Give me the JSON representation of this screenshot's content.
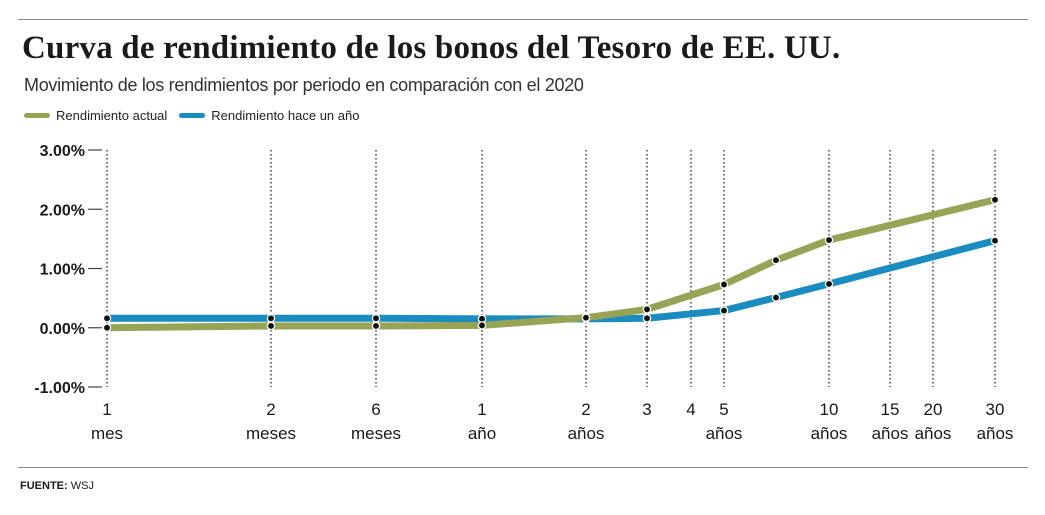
{
  "header": {
    "title": "Curva de rendimiento de los bonos del Tesoro de EE. UU.",
    "subtitle": "Movimiento de los rendimientos por periodo en comparación con el 2020"
  },
  "source": {
    "label": "FUENTE:",
    "text": "WSJ"
  },
  "colors": {
    "current": "#97a355",
    "year_ago": "#1a8cbf",
    "grid": "#333333",
    "axis": "#444444"
  },
  "chart_data": {
    "type": "line",
    "title": "Curva de rendimiento de los bonos del Tesoro de EE. UU.",
    "ylim": [
      -0.01,
      0.03
    ],
    "y_ticks": [
      "3.00%",
      "2.00%",
      "1.00%",
      "0.00%",
      "-1.00%"
    ],
    "y_tick_values": [
      0.03,
      0.02,
      0.01,
      0.0,
      -0.01
    ],
    "x_labels": [
      [
        "1",
        "mes"
      ],
      [
        "2",
        "meses"
      ],
      [
        "6",
        "meses"
      ],
      [
        "1",
        "año"
      ],
      [
        "2",
        "años"
      ],
      [
        "3",
        ""
      ],
      [
        "4",
        ""
      ],
      [
        "5",
        "años"
      ],
      [
        "10",
        "años"
      ],
      [
        "15",
        "años"
      ],
      [
        "20",
        "años"
      ],
      [
        "30",
        "años"
      ]
    ],
    "series": [
      {
        "name": "Rendimiento actual",
        "color": "#97a355",
        "points": [
          [
            "1 mes",
            0.0
          ],
          [
            "2 meses",
            0.0003
          ],
          [
            "6 meses",
            0.0003
          ],
          [
            "1 año",
            0.0004
          ],
          [
            "2 años",
            0.0017
          ],
          [
            "3 años",
            0.0031
          ],
          [
            "5 años",
            0.0073
          ],
          [
            "7 años",
            0.0114
          ],
          [
            "10 años",
            0.0148
          ],
          [
            "30 años",
            0.0216
          ]
        ]
      },
      {
        "name": "Rendimiento hace un año",
        "color": "#1a8cbf",
        "points": [
          [
            "1 mes",
            0.0016
          ],
          [
            "2 meses",
            0.0016
          ],
          [
            "6 meses",
            0.0016
          ],
          [
            "1 año",
            0.0015
          ],
          [
            "2 años",
            0.0015
          ],
          [
            "3 años",
            0.0016
          ],
          [
            "5 años",
            0.0029
          ],
          [
            "7 años",
            0.0051
          ],
          [
            "10 años",
            0.0074
          ],
          [
            "30 años",
            0.0147
          ]
        ]
      }
    ],
    "grid": "dotted vertical lines at x tick positions",
    "legend": "top-left"
  }
}
